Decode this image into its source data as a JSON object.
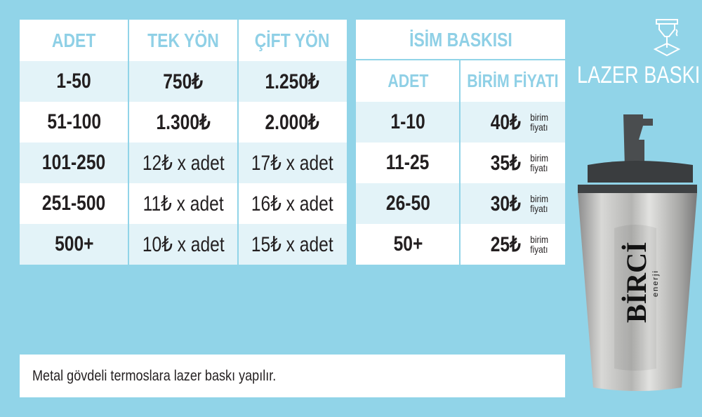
{
  "pricing_table": {
    "headers": [
      "ADET",
      "TEK YÖN",
      "ÇİFT YÖN"
    ],
    "rows": [
      {
        "qty": "1-50",
        "single": "750₺",
        "double": "1.250₺"
      },
      {
        "qty": "51-100",
        "single": "1.300₺",
        "double": "2.000₺"
      },
      {
        "qty": "101-250",
        "single": "12₺ x adet",
        "double": "17₺ x adet"
      },
      {
        "qty": "251-500",
        "single": "11₺ x adet",
        "double": "16₺ x adet"
      },
      {
        "qty": "500+",
        "single": "10₺ x adet",
        "double": "15₺ x adet"
      }
    ]
  },
  "name_print_table": {
    "title": "İSİM BASKISI",
    "headers": [
      "ADET",
      "BİRİM FİYATI"
    ],
    "unit_line1": "birim",
    "unit_line2": "fiyatı",
    "rows": [
      {
        "qty": "1-10",
        "price": "40₺"
      },
      {
        "qty": "11-25",
        "price": "35₺"
      },
      {
        "qty": "26-50",
        "price": "30₺"
      },
      {
        "qty": "50+",
        "price": "25₺"
      }
    ]
  },
  "side": {
    "label": "LAZER BASKI",
    "icon": "laser-engraver-icon"
  },
  "product": {
    "brand": "BİRCİ",
    "brand_sub": "enerji"
  },
  "note": "Metal gövdeli termoslara lazer baskı yapılır.",
  "colors": {
    "background": "#91d4e8",
    "header_text": "#8fd0e6",
    "row_shade": "#e3f3f8",
    "text": "#231f20"
  }
}
